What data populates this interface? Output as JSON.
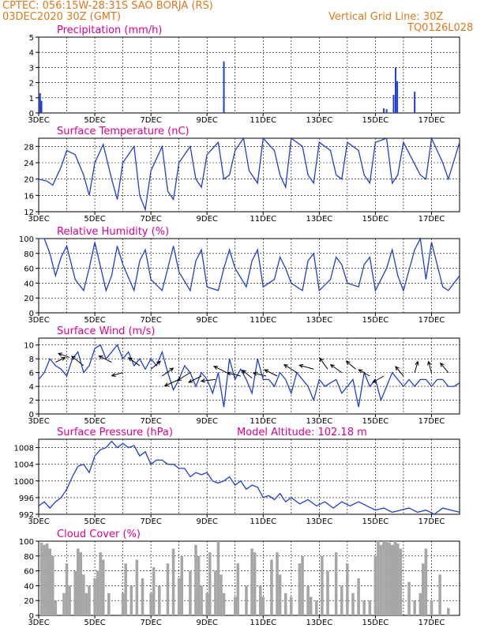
{
  "header": {
    "station_line": "CPTEC:  056:15W-28:31S  SAO BORJA (RS)",
    "date_line": "03DEC2020 30Z (GMT)",
    "grid_line": "Vertical Grid Line: 30Z",
    "code": "TQ0126L028"
  },
  "colors": {
    "header": "#e0781a",
    "title": "#e0008c",
    "line": "#1f3fd0",
    "cloud": "#a6a6a6"
  },
  "chart_data": [
    {
      "id": "precip",
      "type": "bar",
      "title": "Precipitation  (mm/h)",
      "xlim": [
        3,
        18
      ],
      "ylim": [
        0,
        5
      ],
      "yticks": [
        "0",
        "1",
        "2",
        "3",
        "4",
        "5"
      ],
      "xticks": [
        "3DEC",
        "5DEC",
        "7DEC",
        "9DEC",
        "11DEC",
        "13DEC",
        "15DEC",
        "17DEC"
      ],
      "bars": [
        {
          "x": 3.05,
          "y": 1.3
        },
        {
          "x": 3.1,
          "y": 0.8
        },
        {
          "x": 9.6,
          "y": 3.4
        },
        {
          "x": 15.3,
          "y": 0.3
        },
        {
          "x": 15.4,
          "y": 0.25
        },
        {
          "x": 15.65,
          "y": 1.2
        },
        {
          "x": 15.72,
          "y": 3.0
        },
        {
          "x": 15.78,
          "y": 2.1
        },
        {
          "x": 16.4,
          "y": 1.4
        }
      ]
    },
    {
      "id": "temp",
      "type": "line",
      "title": "Surface Temperature (nC)",
      "xlim": [
        3,
        18
      ],
      "ylim": [
        12,
        30
      ],
      "yticks": [
        "12",
        "16",
        "20",
        "24",
        "28"
      ],
      "xticks": [
        "3DEC",
        "5DEC",
        "7DEC",
        "9DEC",
        "11DEC",
        "13DEC",
        "15DEC",
        "17DEC"
      ],
      "x": [
        3.0,
        3.3,
        3.5,
        3.8,
        4.0,
        4.3,
        4.6,
        4.8,
        5.0,
        5.3,
        5.6,
        5.8,
        6.0,
        6.4,
        6.6,
        6.8,
        7.0,
        7.4,
        7.6,
        7.8,
        8.0,
        8.4,
        8.6,
        8.8,
        9.0,
        9.4,
        9.6,
        9.8,
        10.0,
        10.3,
        10.5,
        10.8,
        11.0,
        11.4,
        11.6,
        11.8,
        12.0,
        12.4,
        12.6,
        12.8,
        13.0,
        13.4,
        13.6,
        13.8,
        14.0,
        14.4,
        14.6,
        14.8,
        15.0,
        15.4,
        15.6,
        15.8,
        16.0,
        16.3,
        16.6,
        16.8,
        17.0,
        17.4,
        17.6,
        18.0
      ],
      "y": [
        20,
        19.5,
        18.5,
        23,
        27,
        26,
        21,
        16,
        24,
        28.5,
        20,
        15,
        24,
        28,
        16,
        12.5,
        22,
        28,
        17,
        15,
        24,
        28,
        20,
        18,
        26,
        29,
        20,
        21,
        27,
        30,
        22,
        19,
        30,
        27,
        21,
        18,
        30,
        28,
        21,
        19,
        29,
        27,
        21,
        20,
        29,
        27,
        21,
        19,
        29,
        30,
        19,
        21,
        29,
        25,
        21,
        20,
        30,
        24,
        20,
        29
      ]
    },
    {
      "id": "rh",
      "type": "line",
      "title": "Relative Humidity (%)",
      "xlim": [
        3,
        18
      ],
      "ylim": [
        0,
        100
      ],
      "yticks": [
        "0",
        "20",
        "40",
        "60",
        "80",
        "100"
      ],
      "xticks": [
        "3DEC",
        "5DEC",
        "7DEC",
        "9DEC",
        "11DEC",
        "13DEC",
        "15DEC",
        "17DEC"
      ],
      "x": [
        3.0,
        3.2,
        3.4,
        3.6,
        3.8,
        4.0,
        4.3,
        4.6,
        4.8,
        5.0,
        5.4,
        5.6,
        5.8,
        6.0,
        6.4,
        6.6,
        6.8,
        7.0,
        7.4,
        7.6,
        7.8,
        8.0,
        8.4,
        8.6,
        8.8,
        9.0,
        9.4,
        9.6,
        9.8,
        10.0,
        10.4,
        10.6,
        10.8,
        11.0,
        11.4,
        11.6,
        11.8,
        12.0,
        12.4,
        12.6,
        12.8,
        13.0,
        13.4,
        13.6,
        13.8,
        14.0,
        14.4,
        14.6,
        14.8,
        15.0,
        15.4,
        15.6,
        15.8,
        16.0,
        16.4,
        16.6,
        16.8,
        17.0,
        17.4,
        17.6,
        17.8,
        18.0
      ],
      "y": [
        100,
        100,
        80,
        50,
        75,
        90,
        45,
        30,
        60,
        95,
        30,
        50,
        90,
        65,
        30,
        70,
        85,
        45,
        30,
        60,
        90,
        55,
        30,
        70,
        85,
        35,
        30,
        60,
        85,
        60,
        35,
        70,
        85,
        35,
        45,
        75,
        60,
        40,
        30,
        70,
        80,
        30,
        45,
        75,
        65,
        40,
        35,
        65,
        75,
        30,
        60,
        85,
        50,
        30,
        85,
        100,
        45,
        95,
        35,
        30,
        40,
        50
      ]
    },
    {
      "id": "wind",
      "type": "line",
      "title": "Surface Wind (m/s)",
      "xlim": [
        3,
        18
      ],
      "ylim": [
        0,
        11
      ],
      "yticks": [
        "0",
        "2",
        "4",
        "6",
        "8",
        "10"
      ],
      "xticks": [
        "3DEC",
        "5DEC",
        "7DEC",
        "9DEC",
        "11DEC",
        "13DEC",
        "15DEC",
        "17DEC"
      ],
      "x": [
        3.0,
        3.2,
        3.4,
        3.6,
        3.8,
        4.0,
        4.2,
        4.4,
        4.6,
        4.8,
        5.0,
        5.2,
        5.4,
        5.6,
        5.8,
        6.0,
        6.2,
        6.4,
        6.6,
        6.8,
        7.0,
        7.2,
        7.4,
        7.6,
        7.8,
        8.0,
        8.2,
        8.4,
        8.6,
        8.8,
        9.0,
        9.2,
        9.4,
        9.6,
        9.8,
        10.0,
        10.2,
        10.4,
        10.6,
        10.8,
        11.0,
        11.2,
        11.4,
        11.6,
        11.8,
        12.0,
        12.2,
        12.4,
        12.6,
        12.8,
        13.0,
        13.2,
        13.4,
        13.6,
        13.8,
        14.0,
        14.2,
        14.4,
        14.6,
        14.8,
        15.0,
        15.2,
        15.4,
        15.6,
        15.8,
        16.0,
        16.2,
        16.4,
        16.6,
        16.8,
        17.0,
        17.2,
        17.4,
        17.6,
        17.8,
        18.0
      ],
      "y": [
        5,
        6,
        8,
        7,
        6.5,
        5.5,
        8,
        9,
        6,
        7,
        9.5,
        10,
        8,
        9,
        10,
        8,
        9,
        7,
        8,
        6.5,
        8,
        7,
        9,
        6,
        3.5,
        5,
        7,
        6,
        4,
        6,
        5,
        3,
        6,
        1,
        8,
        5,
        6.5,
        5,
        3,
        8,
        5,
        5,
        4,
        6,
        5,
        3,
        6,
        5,
        4,
        2,
        5,
        4,
        4.5,
        5,
        3,
        4,
        5,
        1,
        6,
        4,
        5,
        2,
        4,
        6,
        5,
        4,
        5,
        4,
        5,
        5,
        4,
        5,
        5,
        4,
        4,
        4.5
      ]
    },
    {
      "id": "pressure",
      "type": "line",
      "title": "Surface Pressure (hPa)",
      "annotation": "Model Altitude: 102.18 m",
      "xlim": [
        3,
        18
      ],
      "ylim": [
        992,
        1010
      ],
      "yticks": [
        "992",
        "996",
        "1000",
        "1004",
        "1008"
      ],
      "xticks": [
        "3DEC",
        "5DEC",
        "7DEC",
        "9DEC",
        "11DEC",
        "13DEC",
        "15DEC",
        "17DEC"
      ],
      "x": [
        3.0,
        3.2,
        3.4,
        3.6,
        3.8,
        4.0,
        4.2,
        4.4,
        4.6,
        4.8,
        5.0,
        5.2,
        5.4,
        5.6,
        5.8,
        6.0,
        6.2,
        6.4,
        6.6,
        6.8,
        7.0,
        7.2,
        7.4,
        7.6,
        7.8,
        8.0,
        8.2,
        8.4,
        8.6,
        8.8,
        9.0,
        9.2,
        9.4,
        9.6,
        9.8,
        10.0,
        10.2,
        10.4,
        10.6,
        10.8,
        11.0,
        11.2,
        11.4,
        11.6,
        11.8,
        12.0,
        12.3,
        12.6,
        12.9,
        13.2,
        13.5,
        13.8,
        14.1,
        14.4,
        14.7,
        15.0,
        15.3,
        15.6,
        15.9,
        16.2,
        16.5,
        16.8,
        17.1,
        17.4,
        17.7,
        18.0
      ],
      "y": [
        994,
        995,
        993.5,
        995,
        996,
        998,
        1001,
        1003.5,
        1004,
        1002,
        1006,
        1007.5,
        1008,
        1009.5,
        1008,
        1009,
        1008,
        1008.5,
        1006,
        1007,
        1004,
        1005,
        1005,
        1004,
        1004,
        1003,
        1003,
        1001,
        1002,
        1001.5,
        1002,
        1000,
        999.5,
        1000,
        1001,
        999,
        1000,
        998,
        999,
        998.5,
        996,
        996.5,
        995.5,
        997,
        995,
        996,
        994.5,
        995.5,
        994,
        995,
        993.5,
        995,
        994,
        995,
        994,
        993,
        993.5,
        992.5,
        993,
        993.5,
        992.5,
        993,
        992,
        993.5,
        993,
        992.5
      ]
    },
    {
      "id": "cloud",
      "type": "bar",
      "title": "Cloud Cover (%)",
      "xlim": [
        3,
        18
      ],
      "ylim": [
        0,
        100
      ],
      "yticks": [
        "0",
        "20",
        "40",
        "60",
        "80",
        "100"
      ],
      "xticks": [
        "3DEC",
        "5DEC",
        "7DEC",
        "9DEC",
        "11DEC",
        "13DEC",
        "15DEC",
        "17DEC"
      ],
      "x": [
        3.1,
        3.2,
        3.3,
        3.4,
        3.5,
        3.6,
        3.9,
        4.0,
        4.1,
        4.3,
        4.4,
        4.5,
        4.6,
        4.7,
        4.8,
        5.0,
        5.1,
        5.2,
        5.3,
        5.5,
        6.0,
        6.1,
        6.3,
        6.5,
        6.7,
        7.0,
        7.1,
        7.3,
        7.6,
        7.8,
        8.0,
        8.1,
        8.4,
        8.6,
        8.7,
        8.8,
        9.0,
        9.1,
        9.3,
        9.4,
        9.5,
        9.6,
        10.0,
        10.1,
        10.4,
        10.6,
        10.7,
        10.9,
        11.0,
        11.3,
        11.5,
        11.6,
        11.8,
        12.0,
        12.3,
        12.4,
        12.6,
        12.7,
        12.9,
        13.1,
        13.3,
        13.6,
        13.8,
        14.0,
        14.2,
        14.4,
        14.6,
        14.8,
        15.0,
        15.1,
        15.2,
        15.3,
        15.4,
        15.5,
        15.6,
        15.7,
        15.8,
        15.9,
        16.2,
        16.4,
        16.6,
        16.7,
        16.8,
        17.0,
        17.3,
        17.6
      ],
      "y": [
        98,
        95,
        97,
        90,
        80,
        20,
        30,
        70,
        40,
        60,
        90,
        85,
        55,
        30,
        40,
        50,
        60,
        85,
        75,
        30,
        30,
        70,
        40,
        75,
        50,
        30,
        65,
        40,
        70,
        90,
        50,
        80,
        60,
        95,
        80,
        40,
        30,
        85,
        60,
        100,
        55,
        30,
        25,
        70,
        40,
        90,
        85,
        40,
        25,
        75,
        85,
        55,
        30,
        25,
        70,
        80,
        40,
        25,
        20,
        80,
        60,
        85,
        40,
        70,
        30,
        50,
        20,
        20,
        80,
        100,
        95,
        100,
        100,
        98,
        95,
        100,
        97,
        90,
        45,
        20,
        30,
        70,
        90,
        20,
        55,
        10
      ]
    }
  ],
  "wind_arrows": [
    {
      "x": 3.6,
      "y": 7.5,
      "dx": 12,
      "dy": -6
    },
    {
      "x": 4.1,
      "y": 8.2,
      "dx": -14,
      "dy": -5
    },
    {
      "x": 4.6,
      "y": 7.0,
      "dx": -15,
      "dy": -12
    },
    {
      "x": 5.6,
      "y": 7.5,
      "dx": -16,
      "dy": -8
    },
    {
      "x": 6.0,
      "y": 6.0,
      "dx": -14,
      "dy": 4
    },
    {
      "x": 6.6,
      "y": 7.0,
      "dx": -14,
      "dy": -10
    },
    {
      "x": 7.0,
      "y": 6.5,
      "dx": 12,
      "dy": -10
    },
    {
      "x": 7.4,
      "y": 5.5,
      "dx": 14,
      "dy": -10
    },
    {
      "x": 8.0,
      "y": 5.0,
      "dx": -18,
      "dy": 8
    },
    {
      "x": 8.4,
      "y": 6.0,
      "dx": -16,
      "dy": 10
    },
    {
      "x": 8.8,
      "y": 5.5,
      "dx": -16,
      "dy": 8
    },
    {
      "x": 9.3,
      "y": 5.0,
      "dx": -18,
      "dy": 2
    },
    {
      "x": 9.7,
      "y": 6.0,
      "dx": -16,
      "dy": -8
    },
    {
      "x": 10.2,
      "y": 5.5,
      "dx": -17,
      "dy": -4
    },
    {
      "x": 10.6,
      "y": 5.2,
      "dx": -12,
      "dy": -10
    },
    {
      "x": 11.1,
      "y": 5.5,
      "dx": -16,
      "dy": -4
    },
    {
      "x": 11.5,
      "y": 5.5,
      "dx": -16,
      "dy": -8
    },
    {
      "x": 12.2,
      "y": 6.0,
      "dx": -16,
      "dy": -10
    },
    {
      "x": 12.8,
      "y": 6.5,
      "dx": -18,
      "dy": -5
    },
    {
      "x": 13.3,
      "y": 6.5,
      "dx": -10,
      "dy": -14
    },
    {
      "x": 13.8,
      "y": 6.0,
      "dx": -14,
      "dy": -10
    },
    {
      "x": 14.3,
      "y": 6.5,
      "dx": -12,
      "dy": -10
    },
    {
      "x": 14.8,
      "y": 5.5,
      "dx": -14,
      "dy": -8
    },
    {
      "x": 15.3,
      "y": 5.5,
      "dx": -14,
      "dy": 8
    },
    {
      "x": 16.0,
      "y": 5.5,
      "dx": -10,
      "dy": -12
    },
    {
      "x": 16.4,
      "y": 6.0,
      "dx": 4,
      "dy": -14
    },
    {
      "x": 17.0,
      "y": 6.0,
      "dx": -4,
      "dy": -14
    },
    {
      "x": 17.6,
      "y": 6.0,
      "dx": -10,
      "dy": -12
    }
  ]
}
